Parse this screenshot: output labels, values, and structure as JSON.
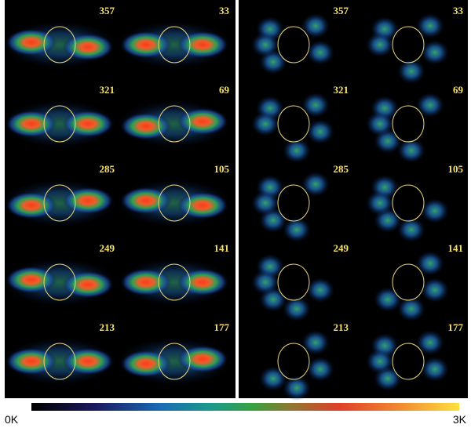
{
  "panels": {
    "left": [
      [
        357,
        33
      ],
      [
        321,
        69
      ],
      [
        285,
        105
      ],
      [
        249,
        141
      ],
      [
        213,
        177
      ]
    ],
    "right": [
      [
        357,
        33
      ],
      [
        321,
        69
      ],
      [
        285,
        105
      ],
      [
        249,
        141
      ],
      [
        213,
        177
      ]
    ]
  },
  "colorbar": {
    "min_label": "0K",
    "max_label": "3K"
  }
}
